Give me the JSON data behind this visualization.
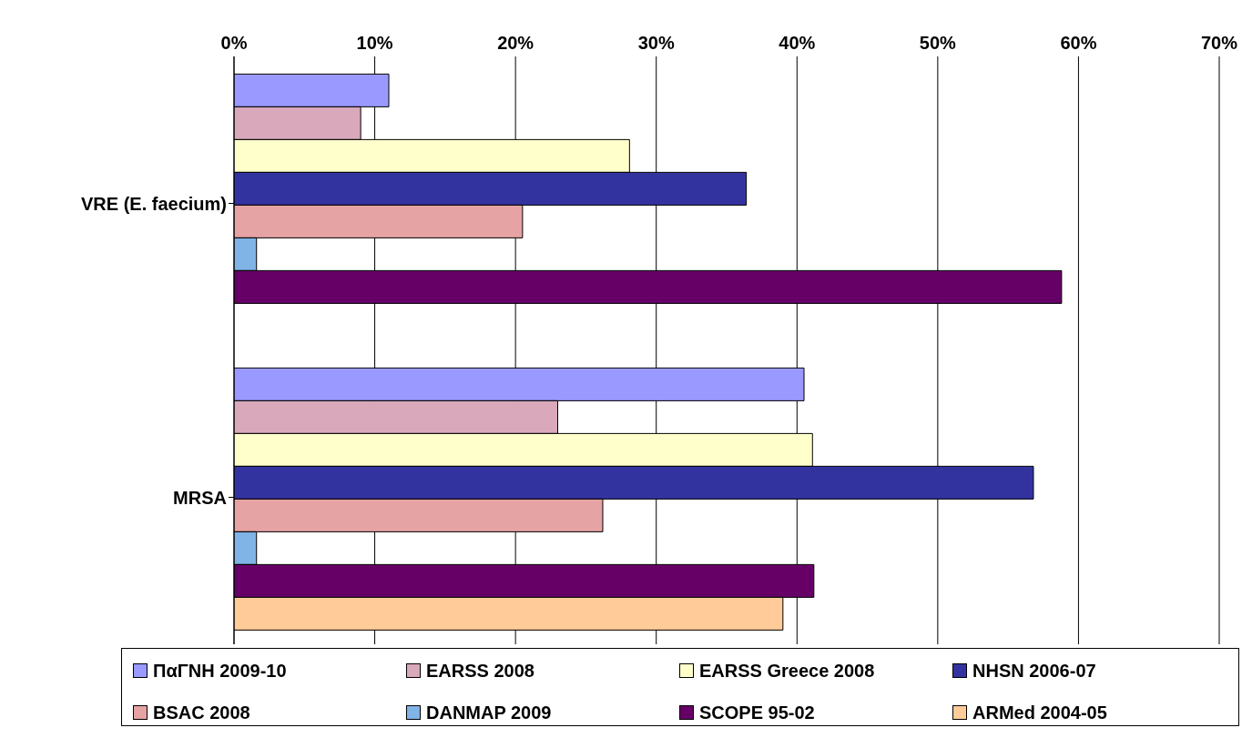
{
  "chart_data": {
    "type": "bar",
    "orientation": "horizontal",
    "categories": [
      "VRE (E. faecium)",
      "MRSA"
    ],
    "series": [
      {
        "name": "ΠαΓΝΗ 2009-10",
        "color": "#9999ff",
        "values": [
          11.0,
          40.5
        ]
      },
      {
        "name": "EARSS 2008",
        "color": "#d9a9bb",
        "values": [
          9.0,
          23.0
        ]
      },
      {
        "name": "EARSS Greece 2008",
        "color": "#ffffcc",
        "values": [
          28.1,
          41.1
        ]
      },
      {
        "name": "NHSN 2006-07",
        "color": "#3333a0",
        "values": [
          36.4,
          56.8
        ]
      },
      {
        "name": "BSAC 2008",
        "color": "#e6a3a3",
        "values": [
          20.5,
          26.2
        ]
      },
      {
        "name": "DANMAP 2009",
        "color": "#80b3e6",
        "values": [
          1.6,
          1.6
        ]
      },
      {
        "name": "SCOPE 95-02",
        "color": "#660066",
        "values": [
          58.8,
          41.2
        ]
      },
      {
        "name": "ARMed 2004-05",
        "color": "#ffcc99",
        "values": [
          null,
          39.0
        ]
      }
    ],
    "xlim": [
      0,
      70
    ],
    "xticks": [
      {
        "value": 0,
        "label": "0%"
      },
      {
        "value": 10,
        "label": "10%"
      },
      {
        "value": 20,
        "label": "20%"
      },
      {
        "value": 30,
        "label": "30%"
      },
      {
        "value": 40,
        "label": "40%"
      },
      {
        "value": 50,
        "label": "50%"
      },
      {
        "value": 60,
        "label": "60%"
      },
      {
        "value": 70,
        "label": "70%"
      }
    ],
    "grid": "x",
    "legend": "bottom"
  }
}
